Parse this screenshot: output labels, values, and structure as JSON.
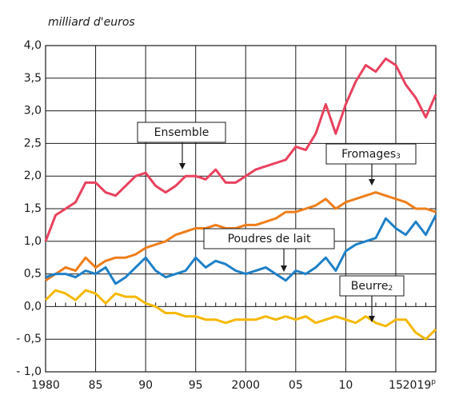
{
  "chart_data": {
    "type": "line",
    "unit_label": "milliard d'euros",
    "x": [
      1980,
      1981,
      1982,
      1983,
      1984,
      1985,
      1986,
      1987,
      1988,
      1989,
      1990,
      1991,
      1992,
      1993,
      1994,
      1995,
      1996,
      1997,
      1998,
      1999,
      2000,
      2001,
      2002,
      2003,
      2004,
      2005,
      2006,
      2007,
      2008,
      2009,
      2010,
      2011,
      2012,
      2013,
      2014,
      2015,
      2016,
      2017,
      2018,
      2019
    ],
    "xlim": [
      1980,
      2019
    ],
    "xticks": [
      1980,
      {
        "value": 1985,
        "label": "85"
      },
      {
        "value": 1990,
        "label": "90"
      },
      {
        "value": 1995,
        "label": "95"
      },
      2000,
      {
        "value": 2005,
        "label": "05"
      },
      {
        "value": 2010,
        "label": "10"
      },
      {
        "value": 2015,
        "label": "15"
      },
      {
        "value": 2019,
        "label": "2019",
        "sup": "p"
      }
    ],
    "ylim": [
      -1.0,
      4.0
    ],
    "yticks": [
      {
        "value": -1.0,
        "label": "- 1,0"
      },
      {
        "value": -0.5,
        "label": "- 0,5"
      },
      {
        "value": 0.0,
        "label": "0,0"
      },
      {
        "value": 0.5,
        "label": "0,5"
      },
      {
        "value": 1.0,
        "label": "1,0"
      },
      {
        "value": 1.5,
        "label": "1,5"
      },
      {
        "value": 2.0,
        "label": "2,0"
      },
      {
        "value": 2.5,
        "label": "2,5"
      },
      {
        "value": 3.0,
        "label": "3,0"
      },
      {
        "value": 3.5,
        "label": "3,5"
      },
      {
        "value": 4.0,
        "label": "4,0"
      }
    ],
    "grid": true,
    "series": [
      {
        "name": "Ensemble",
        "color": "#e9415e",
        "values": [
          1.0,
          1.4,
          1.5,
          1.6,
          1.9,
          1.9,
          1.75,
          1.7,
          1.85,
          2.0,
          2.05,
          1.85,
          1.75,
          1.85,
          2.0,
          2.0,
          1.95,
          2.1,
          1.9,
          1.9,
          2.0,
          2.1,
          2.15,
          2.2,
          2.25,
          2.45,
          2.4,
          2.65,
          3.1,
          2.65,
          3.1,
          3.45,
          3.7,
          3.6,
          3.8,
          3.7,
          3.4,
          3.2,
          2.9,
          3.25
        ]
      },
      {
        "name": "Fromages",
        "note": "3",
        "color": "#ef7d1a",
        "values": [
          0.4,
          0.5,
          0.6,
          0.55,
          0.75,
          0.6,
          0.7,
          0.75,
          0.75,
          0.8,
          0.9,
          0.95,
          1.0,
          1.1,
          1.15,
          1.2,
          1.2,
          1.25,
          1.2,
          1.2,
          1.25,
          1.25,
          1.3,
          1.35,
          1.45,
          1.45,
          1.5,
          1.55,
          1.65,
          1.5,
          1.6,
          1.65,
          1.7,
          1.75,
          1.7,
          1.65,
          1.6,
          1.5,
          1.5,
          1.45
        ]
      },
      {
        "name": "Poudres de lait",
        "color": "#1f80c8",
        "values": [
          0.45,
          0.5,
          0.5,
          0.45,
          0.55,
          0.5,
          0.6,
          0.35,
          0.45,
          0.6,
          0.75,
          0.55,
          0.45,
          0.5,
          0.55,
          0.75,
          0.6,
          0.7,
          0.65,
          0.55,
          0.5,
          0.55,
          0.6,
          0.5,
          0.4,
          0.55,
          0.5,
          0.6,
          0.75,
          0.55,
          0.85,
          0.95,
          1.0,
          1.05,
          1.35,
          1.2,
          1.1,
          1.3,
          1.1,
          1.4
        ]
      },
      {
        "name": "Beurre",
        "note": "2",
        "color": "#f5b800",
        "values": [
          0.1,
          0.25,
          0.2,
          0.1,
          0.25,
          0.2,
          0.05,
          0.2,
          0.15,
          0.15,
          0.05,
          0.0,
          -0.1,
          -0.1,
          -0.15,
          -0.15,
          -0.2,
          -0.2,
          -0.25,
          -0.2,
          -0.2,
          -0.2,
          -0.15,
          -0.2,
          -0.15,
          -0.2,
          -0.15,
          -0.25,
          -0.2,
          -0.15,
          -0.2,
          -0.25,
          -0.15,
          -0.25,
          -0.3,
          -0.2,
          -0.2,
          -0.4,
          -0.5,
          -0.35
        ]
      }
    ]
  }
}
